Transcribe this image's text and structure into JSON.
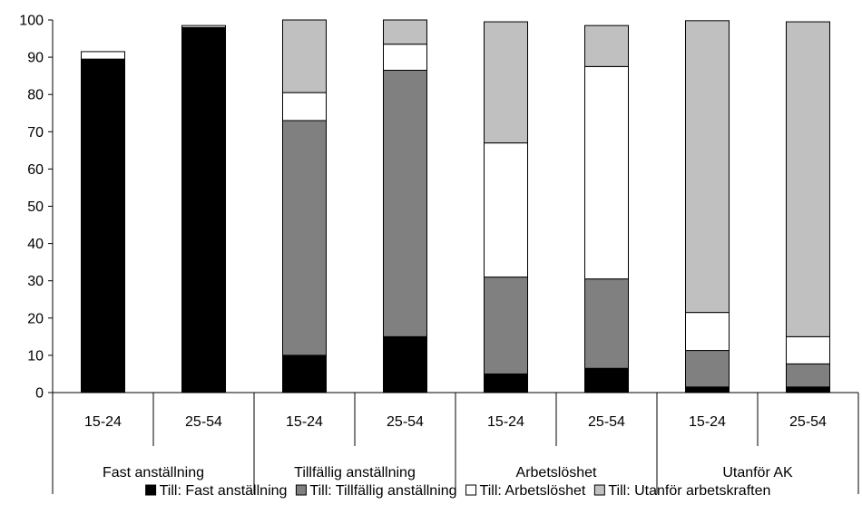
{
  "chart_data": {
    "type": "bar",
    "stacked": true,
    "title": "",
    "xlabel": "",
    "ylabel": "",
    "ylim": [
      0,
      100
    ],
    "yticks": [
      0,
      10,
      20,
      30,
      40,
      50,
      60,
      70,
      80,
      90,
      100
    ],
    "groups": [
      "Fast anställning",
      "Tillfällig anställning",
      "Arbetslöshet",
      "Utanför AK"
    ],
    "categories": [
      "15-24",
      "25-54",
      "15-24",
      "25-54",
      "15-24",
      "25-54",
      "15-24",
      "25-54"
    ],
    "series": [
      {
        "name": "Till: Fast anställning",
        "color": "#000000",
        "values": [
          89.5,
          98,
          10,
          15,
          5,
          6.5,
          1.5,
          1.5
        ]
      },
      {
        "name": "Till: Tillfällig anställning",
        "color": "#808080",
        "values": [
          0,
          0,
          63,
          71.5,
          26,
          24,
          9.8,
          6.2
        ]
      },
      {
        "name": "Till: Arbetslöshet",
        "color": "#ffffff",
        "values": [
          2,
          0.5,
          7.5,
          7,
          36,
          57,
          10.2,
          7.3
        ]
      },
      {
        "name": "Till: Utanför arbetskraften",
        "color": "#c0c0c0",
        "values": [
          0,
          0,
          19.5,
          6.5,
          32.5,
          11,
          78.3,
          84.5
        ]
      }
    ],
    "grid": false,
    "legend_position": "bottom"
  }
}
